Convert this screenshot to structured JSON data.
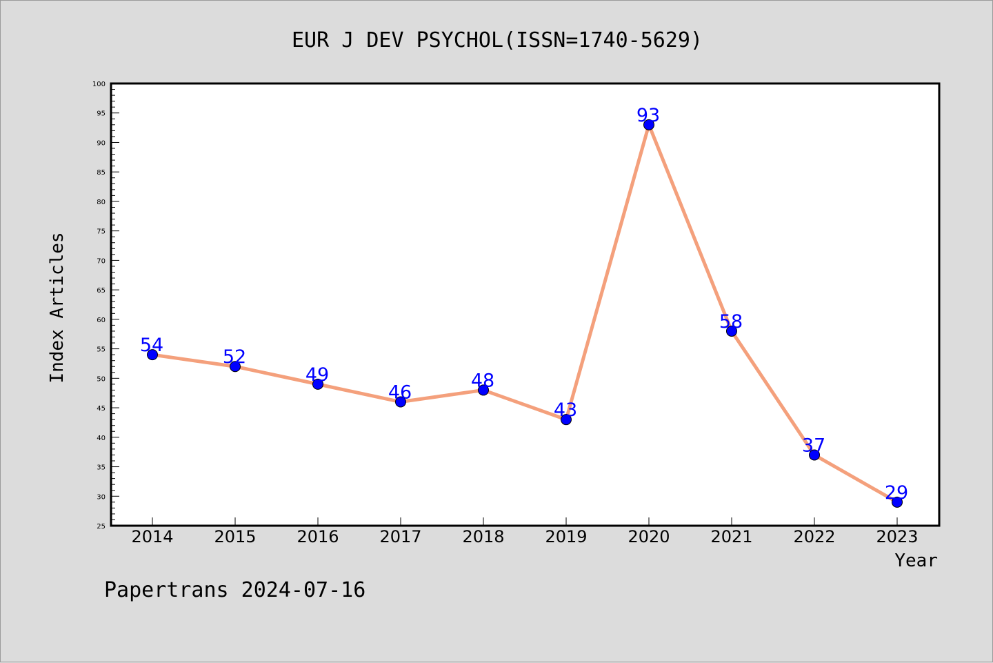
{
  "footer": {
    "text": "Papertrans 2024-07-16"
  },
  "chart_data": {
    "type": "line",
    "title": "EUR J DEV PSYCHOL(ISSN=1740-5629)",
    "xlabel": "Year",
    "ylabel": "Index Articles",
    "categories": [
      "2014",
      "2015",
      "2016",
      "2017",
      "2018",
      "2019",
      "2020",
      "2021",
      "2022",
      "2023"
    ],
    "series": [
      {
        "values": [
          54,
          52,
          49,
          46,
          48,
          43,
          93,
          58,
          37,
          29
        ]
      }
    ],
    "ylim": [
      25,
      100
    ],
    "yticks": [
      25,
      30,
      35,
      40,
      45,
      50,
      55,
      60,
      65,
      70,
      75,
      80,
      85,
      90,
      95,
      100
    ],
    "grid": false,
    "data_labels": true,
    "colors": {
      "line": "#f4a07c",
      "marker": "#0000ff",
      "label": "#0000ff",
      "background": "#dcdcdc",
      "plot_bg": "#ffffff"
    }
  }
}
